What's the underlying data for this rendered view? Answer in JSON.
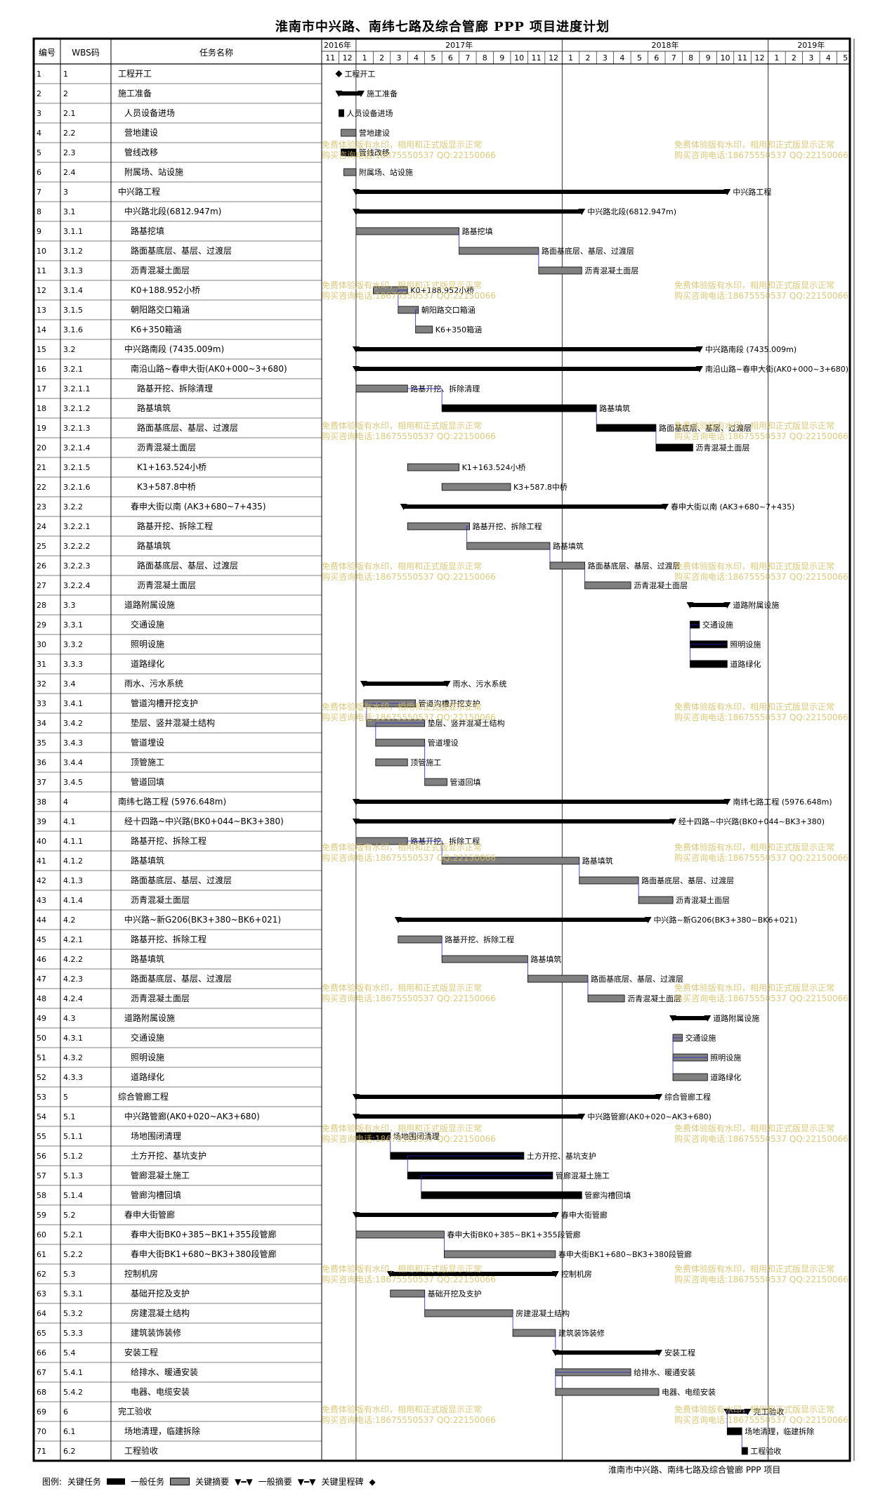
{
  "title": "淮南市中兴路、南纬七路及综合管廊 PPP 项目进度计划",
  "header": {
    "col_id": "编号",
    "col_wbs": "WBS码",
    "col_name": "任务名称"
  },
  "years": [
    "2016年",
    "2017年",
    "2018年",
    "2019年"
  ],
  "months": [
    "11",
    "12",
    "1",
    "2",
    "3",
    "4",
    "5",
    "6",
    "7",
    "8",
    "9",
    "10",
    "11",
    "12",
    "1",
    "2",
    "3",
    "4",
    "5",
    "6",
    "7",
    "8",
    "9",
    "10",
    "11",
    "12",
    "1",
    "2",
    "3",
    "4",
    "5"
  ],
  "watermark": [
    "免费体验版有水印，相用和正式版显示正常",
    "购买咨询电话:18675550537 QQ:22150066"
  ],
  "footer_note": "淮南市中兴路、南纬七路及综合管廊 PPP 项目",
  "legend": {
    "label": "图例:",
    "critical": "关键任务",
    "normal": "一般任务",
    "crit_summary": "关键摘要",
    "normal_summary": "一般摘要",
    "crit_milestone": "关键里程碑"
  },
  "chart_data": {
    "type": "gantt",
    "time_axis": {
      "start": "2016-11",
      "end": "2019-05",
      "unit": "month"
    },
    "tasks": [
      {
        "id": 1,
        "wbs": "1",
        "name": "工程开工",
        "indent": 0,
        "kind": "milestone",
        "start": "2016-12-01",
        "end": "2016-12-01",
        "label": "工程开工"
      },
      {
        "id": 2,
        "wbs": "2",
        "name": "施工准备",
        "indent": 0,
        "kind": "crit_summary",
        "start": "2016-12-01",
        "end": "2017-01-10",
        "label": "施工准备"
      },
      {
        "id": 3,
        "wbs": "2.1",
        "name": "人员设备进场",
        "indent": 1,
        "kind": "critical",
        "start": "2016-12-01",
        "end": "2016-12-10",
        "label": "人员设备进场"
      },
      {
        "id": 4,
        "wbs": "2.2",
        "name": "营地建设",
        "indent": 1,
        "kind": "normal",
        "start": "2016-12-05",
        "end": "2017-01-01",
        "label": "营地建设"
      },
      {
        "id": 5,
        "wbs": "2.3",
        "name": "管线改移",
        "indent": 1,
        "kind": "critical",
        "start": "2016-12-05",
        "end": "2017-01-01",
        "label": "管线改移"
      },
      {
        "id": 6,
        "wbs": "2.4",
        "name": "附属场、站设施",
        "indent": 1,
        "kind": "normal",
        "start": "2016-12-10",
        "end": "2017-01-01",
        "label": "附属场、站设施"
      },
      {
        "id": 7,
        "wbs": "3",
        "name": "中兴路工程",
        "indent": 0,
        "kind": "crit_summary",
        "start": "2017-01-01",
        "end": "2018-10-20",
        "label": "中兴路工程"
      },
      {
        "id": 8,
        "wbs": "3.1",
        "name": "中兴路北段(6812.947m)",
        "indent": 1,
        "kind": "crit_summary",
        "start": "2017-01-01",
        "end": "2018-02-05",
        "label": "中兴路北段(6812.947m)"
      },
      {
        "id": 9,
        "wbs": "3.1.1",
        "name": "路基挖填",
        "indent": 2,
        "kind": "normal",
        "start": "2017-01-01",
        "end": "2017-07-01",
        "label": "路基挖填"
      },
      {
        "id": 10,
        "wbs": "3.1.2",
        "name": "路面基底层、基层、过渡层",
        "indent": 2,
        "kind": "normal",
        "start": "2017-07-01",
        "end": "2017-11-20",
        "label": "路面基底层、基层、过渡层"
      },
      {
        "id": 11,
        "wbs": "3.1.3",
        "name": "沥青混凝土面层",
        "indent": 2,
        "kind": "normal",
        "start": "2017-11-20",
        "end": "2018-02-05",
        "label": "沥青混凝土面层"
      },
      {
        "id": 12,
        "wbs": "3.1.4",
        "name": "K0+188.952小桥",
        "indent": 2,
        "kind": "normal",
        "start": "2017-02-01",
        "end": "2017-04-01",
        "label": "K0+188.952小桥"
      },
      {
        "id": 13,
        "wbs": "3.1.5",
        "name": "朝阳路交口箱涵",
        "indent": 2,
        "kind": "normal",
        "start": "2017-03-15",
        "end": "2017-04-20",
        "label": "朝阳路交口箱涵"
      },
      {
        "id": 14,
        "wbs": "3.1.6",
        "name": "K6+350箱涵",
        "indent": 2,
        "kind": "normal",
        "start": "2017-04-15",
        "end": "2017-05-15",
        "label": "K6+350箱涵"
      },
      {
        "id": 15,
        "wbs": "3.2",
        "name": "中兴路南段 (7435.009m)",
        "indent": 1,
        "kind": "crit_summary",
        "start": "2017-01-01",
        "end": "2018-09-01",
        "label": "中兴路南段 (7435.009m)"
      },
      {
        "id": 16,
        "wbs": "3.2.1",
        "name": "南沿山路~春申大街(AK0+000~3+680)",
        "indent": 2,
        "kind": "crit_summary",
        "start": "2017-01-01",
        "end": "2018-09-01",
        "label": "南沿山路~春申大街(AK0+000~3+680)"
      },
      {
        "id": 17,
        "wbs": "3.2.1.1",
        "name": "路基开挖、拆除清理",
        "indent": 3,
        "kind": "normal",
        "start": "2017-01-01",
        "end": "2017-04-01",
        "label": "路基开挖、拆除清理"
      },
      {
        "id": 18,
        "wbs": "3.2.1.2",
        "name": "路基填筑",
        "indent": 3,
        "kind": "critical",
        "start": "2017-06-01",
        "end": "2018-03-01",
        "label": "路基填筑"
      },
      {
        "id": 19,
        "wbs": "3.2.1.3",
        "name": "路面基底层、基层、过渡层",
        "indent": 3,
        "kind": "critical",
        "start": "2018-03-01",
        "end": "2018-06-15",
        "label": "路面基底层、基层、过渡层"
      },
      {
        "id": 20,
        "wbs": "3.2.1.4",
        "name": "沥青混凝土面层",
        "indent": 3,
        "kind": "critical",
        "start": "2018-06-15",
        "end": "2018-08-20",
        "label": "沥青混凝土面层"
      },
      {
        "id": 21,
        "wbs": "3.2.1.5",
        "name": "K1+163.524小桥",
        "indent": 3,
        "kind": "normal",
        "start": "2017-04-01",
        "end": "2017-07-01",
        "label": "K1+163.524小桥"
      },
      {
        "id": 22,
        "wbs": "3.2.1.6",
        "name": "K3+587.8中桥",
        "indent": 3,
        "kind": "normal",
        "start": "2017-06-01",
        "end": "2017-10-01",
        "label": "K3+587.8中桥"
      },
      {
        "id": 23,
        "wbs": "3.2.2",
        "name": "春申大街以南 (AK3+680~7+435)",
        "indent": 2,
        "kind": "crit_summary",
        "start": "2017-03-25",
        "end": "2018-07-01",
        "label": "春申大街以南 (AK3+680~7+435)"
      },
      {
        "id": 24,
        "wbs": "3.2.2.1",
        "name": "路基开挖、拆除工程",
        "indent": 3,
        "kind": "normal",
        "start": "2017-04-01",
        "end": "2017-07-20",
        "label": "路基开挖、拆除工程"
      },
      {
        "id": 25,
        "wbs": "3.2.2.2",
        "name": "路基填筑",
        "indent": 3,
        "kind": "normal",
        "start": "2017-07-15",
        "end": "2017-12-10",
        "label": "路基填筑"
      },
      {
        "id": 26,
        "wbs": "3.2.2.3",
        "name": "路面基底层、基层、过渡层",
        "indent": 3,
        "kind": "normal",
        "start": "2017-12-10",
        "end": "2018-02-10",
        "label": "路面基底层、基层、过渡层"
      },
      {
        "id": 27,
        "wbs": "3.2.2.4",
        "name": "沥青混凝土面层",
        "indent": 3,
        "kind": "normal",
        "start": "2018-02-10",
        "end": "2018-05-01",
        "label": "沥青混凝土面层"
      },
      {
        "id": 28,
        "wbs": "3.3",
        "name": "道路附属设施",
        "indent": 1,
        "kind": "crit_summary",
        "start": "2018-08-15",
        "end": "2018-10-20",
        "label": "道路附属设施"
      },
      {
        "id": 29,
        "wbs": "3.3.1",
        "name": "交通设施",
        "indent": 2,
        "kind": "critical",
        "start": "2018-08-15",
        "end": "2018-09-01",
        "label": "交通设施"
      },
      {
        "id": 30,
        "wbs": "3.3.2",
        "name": "照明设施",
        "indent": 2,
        "kind": "critical",
        "start": "2018-08-15",
        "end": "2018-10-20",
        "label": "照明设施"
      },
      {
        "id": 31,
        "wbs": "3.3.3",
        "name": "道路绿化",
        "indent": 2,
        "kind": "critical",
        "start": "2018-08-15",
        "end": "2018-10-20",
        "label": "道路绿化"
      },
      {
        "id": 32,
        "wbs": "3.4",
        "name": "雨水、污水系统",
        "indent": 1,
        "kind": "crit_summary",
        "start": "2017-01-15",
        "end": "2017-06-10",
        "label": "雨水、污水系统"
      },
      {
        "id": 33,
        "wbs": "3.4.1",
        "name": "管道沟槽开挖支护",
        "indent": 2,
        "kind": "normal",
        "start": "2017-01-15",
        "end": "2017-04-15",
        "label": "管道沟槽开挖支护"
      },
      {
        "id": 34,
        "wbs": "3.4.2",
        "name": "垫层、竖井混凝土结构",
        "indent": 2,
        "kind": "normal",
        "start": "2017-01-20",
        "end": "2017-05-01",
        "label": "垫层、竖井混凝土结构"
      },
      {
        "id": 35,
        "wbs": "3.4.3",
        "name": "管道埋设",
        "indent": 2,
        "kind": "normal",
        "start": "2017-02-05",
        "end": "2017-05-01",
        "label": "管道埋设"
      },
      {
        "id": 36,
        "wbs": "3.4.4",
        "name": "顶管施工",
        "indent": 2,
        "kind": "normal",
        "start": "2017-02-05",
        "end": "2017-04-01",
        "label": "顶管施工"
      },
      {
        "id": 37,
        "wbs": "3.4.5",
        "name": "管道回填",
        "indent": 2,
        "kind": "normal",
        "start": "2017-05-01",
        "end": "2017-06-10",
        "label": "管道回填"
      },
      {
        "id": 38,
        "wbs": "4",
        "name": "南纬七路工程 (5976.648m)",
        "indent": 0,
        "kind": "crit_summary",
        "start": "2017-01-01",
        "end": "2018-10-20",
        "label": "南纬七路工程 (5976.648m)"
      },
      {
        "id": 39,
        "wbs": "4.1",
        "name": "经十四路~中兴路(BK0+044~BK3+380)",
        "indent": 1,
        "kind": "crit_summary",
        "start": "2017-01-01",
        "end": "2018-07-15",
        "label": "经十四路~中兴路(BK0+044~BK3+380)"
      },
      {
        "id": 40,
        "wbs": "4.1.1",
        "name": "路基开挖、拆除工程",
        "indent": 2,
        "kind": "normal",
        "start": "2017-01-01",
        "end": "2017-04-01",
        "label": "路基开挖、拆除工程"
      },
      {
        "id": 41,
        "wbs": "4.1.2",
        "name": "路基填筑",
        "indent": 2,
        "kind": "normal",
        "start": "2017-06-01",
        "end": "2018-02-01",
        "label": "路基填筑"
      },
      {
        "id": 42,
        "wbs": "4.1.3",
        "name": "路面基底层、基层、过渡层",
        "indent": 2,
        "kind": "normal",
        "start": "2018-02-01",
        "end": "2018-05-15",
        "label": "路面基底层、基层、过渡层"
      },
      {
        "id": 43,
        "wbs": "4.1.4",
        "name": "沥青混凝土面层",
        "indent": 2,
        "kind": "normal",
        "start": "2018-05-15",
        "end": "2018-07-15",
        "label": "沥青混凝土面层"
      },
      {
        "id": 44,
        "wbs": "4.2",
        "name": "中兴路~新G206(BK3+380~BK6+021)",
        "indent": 1,
        "kind": "crit_summary",
        "start": "2017-03-15",
        "end": "2018-06-01",
        "label": "中兴路~新G206(BK3+380~BK6+021)"
      },
      {
        "id": 45,
        "wbs": "4.2.1",
        "name": "路基开挖、拆除工程",
        "indent": 2,
        "kind": "normal",
        "start": "2017-03-15",
        "end": "2017-06-01",
        "label": "路基开挖、拆除工程"
      },
      {
        "id": 46,
        "wbs": "4.2.2",
        "name": "路基填筑",
        "indent": 2,
        "kind": "normal",
        "start": "2017-06-01",
        "end": "2017-11-01",
        "label": "路基填筑"
      },
      {
        "id": 47,
        "wbs": "4.2.3",
        "name": "路面基底层、基层、过渡层",
        "indent": 2,
        "kind": "normal",
        "start": "2017-11-01",
        "end": "2018-02-15",
        "label": "路面基底层、基层、过渡层"
      },
      {
        "id": 48,
        "wbs": "4.2.4",
        "name": "沥青混凝土面层",
        "indent": 2,
        "kind": "normal",
        "start": "2018-02-15",
        "end": "2018-04-20",
        "label": "沥青混凝土面层"
      },
      {
        "id": 49,
        "wbs": "4.3",
        "name": "道路附属设施",
        "indent": 1,
        "kind": "crit_summary",
        "start": "2018-07-15",
        "end": "2018-09-15",
        "label": "道路附属设施"
      },
      {
        "id": 50,
        "wbs": "4.3.1",
        "name": "交通设施",
        "indent": 2,
        "kind": "normal",
        "start": "2018-07-15",
        "end": "2018-08-01",
        "label": "交通设施"
      },
      {
        "id": 51,
        "wbs": "4.3.2",
        "name": "照明设施",
        "indent": 2,
        "kind": "normal",
        "start": "2018-07-15",
        "end": "2018-09-15",
        "label": "照明设施"
      },
      {
        "id": 52,
        "wbs": "4.3.3",
        "name": "道路绿化",
        "indent": 2,
        "kind": "normal",
        "start": "2018-07-15",
        "end": "2018-09-15",
        "label": "道路绿化"
      },
      {
        "id": 53,
        "wbs": "5",
        "name": "综合管廊工程",
        "indent": 0,
        "kind": "crit_summary",
        "start": "2017-01-01",
        "end": "2018-06-20",
        "label": "综合管廊工程"
      },
      {
        "id": 54,
        "wbs": "5.1",
        "name": "中兴路管廊(AK0+020~AK3+680)",
        "indent": 1,
        "kind": "crit_summary",
        "start": "2017-01-01",
        "end": "2018-02-05",
        "label": "中兴路管廊(AK0+020~AK3+680)"
      },
      {
        "id": 55,
        "wbs": "5.1.1",
        "name": "场地围闭清理",
        "indent": 2,
        "kind": "critical",
        "start": "2017-01-01",
        "end": "2017-03-01",
        "label": "场地围闭清理"
      },
      {
        "id": 56,
        "wbs": "5.1.2",
        "name": "土方开挖、基坑支护",
        "indent": 2,
        "kind": "critical",
        "start": "2017-03-01",
        "end": "2017-10-25",
        "label": "土方开挖、基坑支护"
      },
      {
        "id": 57,
        "wbs": "5.1.3",
        "name": "管廊混凝土施工",
        "indent": 2,
        "kind": "critical",
        "start": "2017-04-01",
        "end": "2017-12-15",
        "label": "管廊混凝土施工"
      },
      {
        "id": 58,
        "wbs": "5.1.4",
        "name": "管廊沟槽回填",
        "indent": 2,
        "kind": "critical",
        "start": "2017-04-25",
        "end": "2018-02-05",
        "label": "管廊沟槽回填"
      },
      {
        "id": 59,
        "wbs": "5.2",
        "name": "春申大街管廊",
        "indent": 1,
        "kind": "crit_summary",
        "start": "2017-01-01",
        "end": "2017-12-20",
        "label": "春申大街管廊"
      },
      {
        "id": 60,
        "wbs": "5.2.1",
        "name": "春申大街BK0+385~BK1+355段管廊",
        "indent": 2,
        "kind": "normal",
        "start": "2017-01-01",
        "end": "2017-06-05",
        "label": "春申大街BK0+385~BK1+355段管廊"
      },
      {
        "id": 61,
        "wbs": "5.2.2",
        "name": "春申大街BK1+680~BK3+380段管廊",
        "indent": 2,
        "kind": "normal",
        "start": "2017-06-05",
        "end": "2017-12-20",
        "label": "春申大街BK1+680~BK3+380段管廊"
      },
      {
        "id": 62,
        "wbs": "5.3",
        "name": "控制机房",
        "indent": 1,
        "kind": "crit_summary",
        "start": "2017-03-01",
        "end": "2017-12-20",
        "label": "控制机房"
      },
      {
        "id": 63,
        "wbs": "5.3.1",
        "name": "基础开挖及支护",
        "indent": 2,
        "kind": "normal",
        "start": "2017-03-01",
        "end": "2017-05-01",
        "label": "基础开挖及支护"
      },
      {
        "id": 64,
        "wbs": "5.3.2",
        "name": "房建混凝土结构",
        "indent": 2,
        "kind": "normal",
        "start": "2017-05-01",
        "end": "2017-10-05",
        "label": "房建混凝土结构"
      },
      {
        "id": 65,
        "wbs": "5.3.3",
        "name": "建筑装饰装修",
        "indent": 2,
        "kind": "normal",
        "start": "2017-10-05",
        "end": "2017-12-20",
        "label": "建筑装饰装修"
      },
      {
        "id": 66,
        "wbs": "5.4",
        "name": "安装工程",
        "indent": 1,
        "kind": "crit_summary",
        "start": "2017-12-20",
        "end": "2018-06-20",
        "label": "安装工程"
      },
      {
        "id": 67,
        "wbs": "5.4.1",
        "name": "给排水、暖通安装",
        "indent": 2,
        "kind": "normal",
        "start": "2017-12-20",
        "end": "2018-05-01",
        "label": "给排水、暖通安装"
      },
      {
        "id": 68,
        "wbs": "5.4.2",
        "name": "电器、电缆安装",
        "indent": 2,
        "kind": "normal",
        "start": "2017-12-20",
        "end": "2018-06-20",
        "label": "电器、电缆安装"
      },
      {
        "id": 69,
        "wbs": "6",
        "name": "完工验收",
        "indent": 0,
        "kind": "crit_summary",
        "start": "2018-10-20",
        "end": "2018-11-25",
        "label": "完工验收"
      },
      {
        "id": 70,
        "wbs": "6.1",
        "name": "场地清理，临建拆除",
        "indent": 1,
        "kind": "critical",
        "start": "2018-10-20",
        "end": "2018-11-15",
        "label": "场地清理，临建拆除"
      },
      {
        "id": 71,
        "wbs": "6.2",
        "name": "工程验收",
        "indent": 1,
        "kind": "critical",
        "start": "2018-11-15",
        "end": "2018-11-25",
        "label": "工程验收"
      }
    ]
  }
}
